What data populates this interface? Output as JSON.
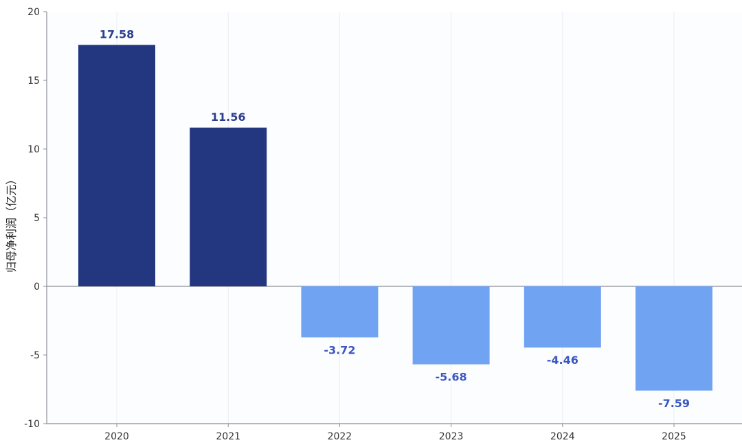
{
  "chart_data": {
    "type": "bar",
    "categories": [
      "2020",
      "2021",
      "2022",
      "2023",
      "2024",
      "2025"
    ],
    "values": [
      17.58,
      11.56,
      -3.72,
      -5.68,
      -4.46,
      -7.59
    ],
    "data_labels": [
      "17.58",
      "11.56",
      "-3.72",
      "-5.68",
      "-4.46",
      "-7.59"
    ],
    "title": "",
    "xlabel": "",
    "ylabel": "归母净利润（亿元）",
    "ylim": [
      -10,
      20
    ],
    "yticks": [
      -10,
      -5,
      0,
      5,
      10,
      15,
      20
    ],
    "ytick_labels": [
      "-10",
      "-5",
      "0",
      "5",
      "10",
      "15",
      "20"
    ],
    "grid": "vertical",
    "legend": "none",
    "colors": {
      "positive_bar": "#233781",
      "negative_bar": "#70A3F2",
      "positive_label": "#2C3E8F",
      "negative_label": "#3A57C2",
      "plot_background": "#FCFDFE",
      "grid": "#E9EEF3",
      "axis": "#8A8F96",
      "zero_line": "#8A8F96"
    }
  }
}
